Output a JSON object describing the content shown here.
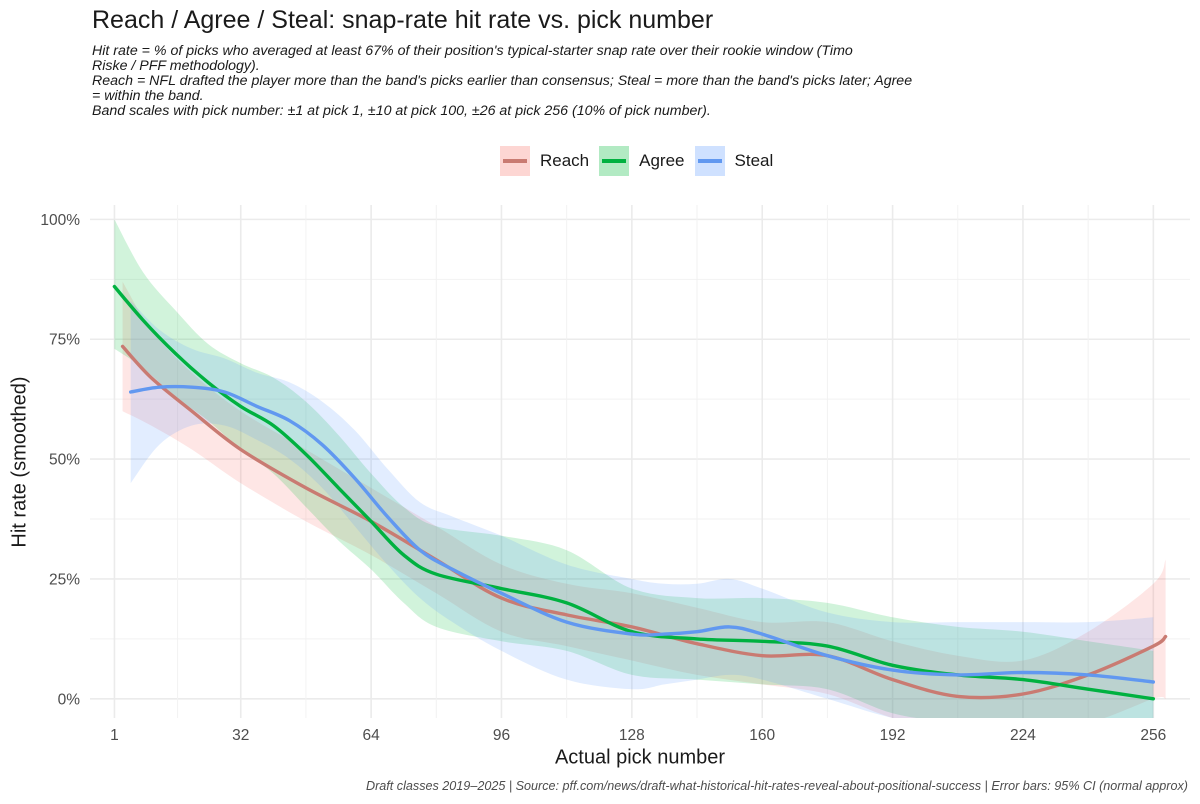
{
  "chart_data": {
    "type": "line",
    "title": "Reach / Agree / Steal: snap-rate hit rate vs. pick number",
    "subtitle_lines": [
      "Hit rate = % of picks who averaged at least 67% of their position's typical-starter snap rate over their rookie window (Timo",
      "Riske / PFF methodology).",
      "Reach = NFL drafted the player more than the band's picks earlier than consensus; Steal = more than the band's picks later; Agree",
      "= within the band.",
      "Band scales with pick number: ±1 at pick 1, ±10 at pick 100, ±26 at pick 256 (10% of pick number)."
    ],
    "xlabel": "Actual pick number",
    "ylabel": "Hit rate (smoothed)",
    "xlim": [
      -5,
      265
    ],
    "ylim": [
      -4,
      103
    ],
    "x_ticks": [
      1,
      32,
      64,
      96,
      128,
      160,
      192,
      224,
      256
    ],
    "x_tick_labels": [
      "1",
      "32",
      "64",
      "96",
      "128",
      "160",
      "192",
      "224",
      "256"
    ],
    "y_ticks": [
      0,
      25,
      50,
      75,
      100
    ],
    "y_tick_labels": [
      "0%",
      "25%",
      "50%",
      "75%",
      "100%"
    ],
    "grid": true,
    "legend_position": "top-center",
    "caption": "Draft classes 2019–2025   |   Source: pff.com/news/draft-what-historical-hit-rates-reveal-about-positional-success   |   Error bars: 95% CI (normal approx)",
    "series": [
      {
        "name": "Reach",
        "color": "#F8766D",
        "line_color": "#c97b72",
        "x": [
          3,
          10,
          20,
          32,
          48,
          64,
          80,
          96,
          112,
          128,
          144,
          160,
          176,
          192,
          208,
          224,
          240,
          256,
          259
        ],
        "y": [
          73.5,
          67,
          60,
          52,
          44,
          37,
          29,
          21,
          17.5,
          15,
          11.5,
          9,
          9,
          4,
          0.5,
          1,
          5,
          11,
          13
        ],
        "lower": [
          60,
          57,
          52,
          45,
          37,
          30,
          22,
          14,
          11,
          8,
          5,
          3,
          1,
          -4,
          -7,
          -6,
          -5,
          0,
          0
        ],
        "upper": [
          87,
          77,
          68,
          60,
          52,
          44,
          36,
          28,
          24,
          22,
          19,
          16,
          16,
          12,
          9,
          8,
          14,
          24,
          29
        ]
      },
      {
        "name": "Agree",
        "color": "#00BA38",
        "line_color": "#00b140",
        "x": [
          1,
          8,
          16,
          24,
          32,
          40,
          48,
          56,
          64,
          72,
          80,
          96,
          112,
          128,
          144,
          160,
          176,
          192,
          208,
          224,
          240,
          256
        ],
        "y": [
          86,
          79,
          72,
          66,
          61,
          57,
          51,
          44,
          37,
          30,
          26,
          23,
          20,
          14,
          12.5,
          12,
          11,
          7,
          5,
          4,
          2,
          0
        ],
        "lower": [
          73,
          69,
          63,
          58,
          52,
          47,
          40,
          33,
          27,
          20,
          15,
          12,
          10,
          5,
          4,
          3,
          2,
          -3,
          -5,
          -6,
          -8,
          -10
        ],
        "upper": [
          100,
          89,
          81,
          74,
          70,
          67,
          62,
          55,
          47,
          40,
          36,
          34,
          31,
          23,
          21,
          21,
          20,
          17,
          15,
          14,
          12,
          10
        ]
      },
      {
        "name": "Steal",
        "color": "#619CFF",
        "line_color": "#6198f0",
        "x": [
          5,
          12,
          20,
          28,
          36,
          44,
          52,
          60,
          68,
          76,
          84,
          96,
          112,
          128,
          136,
          144,
          152,
          160,
          176,
          192,
          208,
          224,
          240,
          256
        ],
        "y": [
          64,
          65,
          65,
          64,
          61,
          58,
          53,
          46,
          38,
          31,
          27,
          22,
          16,
          13.5,
          13.5,
          14,
          15,
          13.5,
          9,
          6,
          5,
          5.5,
          5,
          3.5
        ],
        "lower": [
          45,
          53,
          57,
          57,
          54,
          50,
          44,
          36,
          28,
          21,
          16,
          10,
          4,
          2,
          3,
          4,
          5,
          4,
          0,
          -4,
          -6,
          -6,
          -7,
          -10
        ],
        "upper": [
          83,
          77,
          73,
          71,
          68,
          66,
          62,
          56,
          48,
          41,
          38,
          34,
          28,
          25,
          24,
          24,
          25,
          23,
          18,
          16,
          16,
          16,
          16,
          17
        ]
      }
    ]
  }
}
